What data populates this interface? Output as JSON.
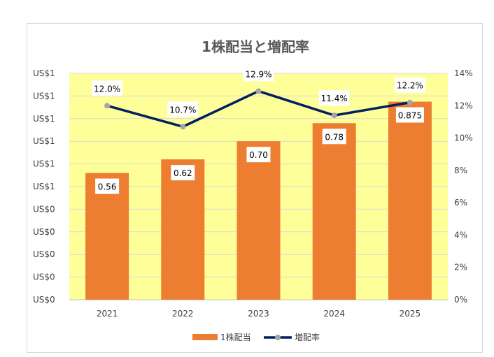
{
  "chart_data": {
    "type": "bar",
    "title": "1株配当と増配率",
    "categories": [
      "2021",
      "2022",
      "2023",
      "2024",
      "2025"
    ],
    "series": [
      {
        "name": "1株配当",
        "type": "bar",
        "axis": "left",
        "values": [
          0.56,
          0.62,
          0.7,
          0.78,
          0.875
        ],
        "labels": [
          "0.56",
          "0.62",
          "0.70",
          "0.78",
          "0.875"
        ]
      },
      {
        "name": "増配率",
        "type": "line",
        "axis": "right",
        "values": [
          12.0,
          10.7,
          12.9,
          11.4,
          12.2
        ],
        "labels": [
          "12.0%",
          "10.7%",
          "12.9%",
          "11.4%",
          "12.2%"
        ]
      }
    ],
    "y_left": {
      "range": [
        0,
        1.0
      ],
      "ticks": [
        "US$0",
        "US$0",
        "US$0",
        "US$0",
        "US$0",
        "US$1",
        "US$1",
        "US$1",
        "US$1",
        "US$1",
        "US$1"
      ]
    },
    "y_right": {
      "range": [
        0,
        14
      ],
      "ticks": [
        "0%",
        "2%",
        "4%",
        "6%",
        "8%",
        "10%",
        "12%",
        "14%"
      ]
    },
    "grid": true,
    "legend": "bottom",
    "colors": {
      "bar": "#ed7d31",
      "line": "#002060",
      "marker": "#a5a5a5",
      "plot_bg": "#ffff99",
      "grid": "#d9d9d9"
    }
  }
}
